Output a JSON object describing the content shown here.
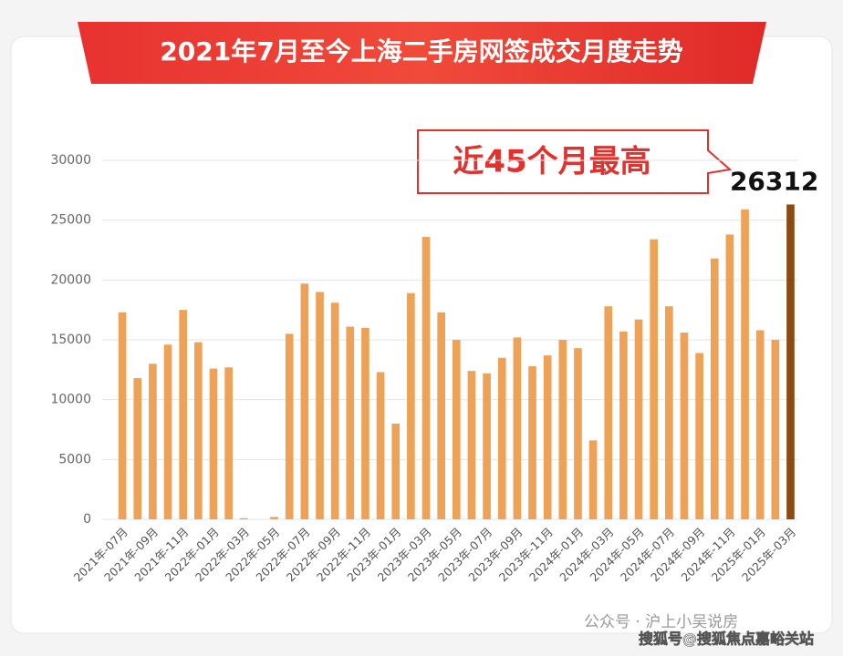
{
  "chart_data": {
    "type": "bar",
    "title": "2021年7月至今上海二手房网签成交月度走势",
    "annotation": "近45个月最高",
    "categories": [
      "2021年-07月",
      null,
      "2021年-09月",
      null,
      "2021年-11月",
      null,
      "2022年-01月",
      null,
      "2022年-03月",
      null,
      "2022年-05月",
      null,
      "2022年-07月",
      null,
      "2022年-09月",
      null,
      "2022年-11月",
      null,
      "2023年-01月",
      null,
      "2023年-03月",
      null,
      "2023年-05月",
      null,
      "2023年-07月",
      null,
      "2023年-09月",
      null,
      "2023年-11月",
      null,
      "2024年-01月",
      null,
      "2024年-03月",
      null,
      "2024年-05月",
      null,
      "2024年-07月",
      null,
      "2024年-09月",
      null,
      "2024年-11月",
      null,
      "2025年-01月",
      null,
      "2025年-03月"
    ],
    "values": [
      17300,
      11800,
      13000,
      14600,
      17500,
      14800,
      12600,
      12700,
      100,
      0,
      200,
      15500,
      19700,
      19000,
      18100,
      16100,
      16000,
      12300,
      8000,
      18900,
      23600,
      17300,
      15000,
      12400,
      12200,
      13500,
      15200,
      12800,
      13700,
      15000,
      14300,
      6600,
      17800,
      15700,
      16700,
      23400,
      17800,
      15600,
      13900,
      21800,
      23800,
      25900,
      15800,
      15000,
      26312
    ],
    "color": "#eea257",
    "colors": [
      "#eea257",
      "#eea257",
      "#eea257",
      "#eea257",
      "#eea257",
      "#eea257",
      "#eea257",
      "#eea257",
      "#eea257",
      "#eea257",
      "#eea257",
      "#eea257",
      "#eea257",
      "#eea257",
      "#eea257",
      "#eea257",
      "#eea257",
      "#eea257",
      "#eea257",
      "#eea257",
      "#eea257",
      "#eea257",
      "#eea257",
      "#eea257",
      "#eea257",
      "#eea257",
      "#eea257",
      "#eea257",
      "#eea257",
      "#eea257",
      "#eea257",
      "#eea257",
      "#eea257",
      "#eea257",
      "#eea257",
      "#eea257",
      "#eea257",
      "#eea257",
      "#eea257",
      "#eea257",
      "#eea257",
      "#eea257",
      "#eea257",
      "#eea257",
      "#8a4a12"
    ],
    "ylim": [
      0,
      30000
    ],
    "yticks": [
      0,
      5000,
      10000,
      15000,
      20000,
      25000,
      30000
    ],
    "grid": true
  },
  "watermarks": [
    "公众号 · 沪上小吴说房",
    "搜狐号@搜狐焦点嘉峪关站"
  ]
}
